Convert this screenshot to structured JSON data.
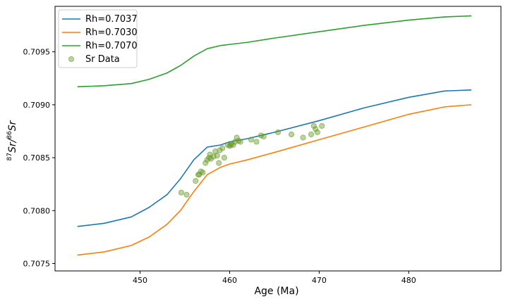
{
  "chart_data": {
    "type": "line",
    "title": "",
    "xlabel": "Age (Ma)",
    "ylabel_parts": {
      "sup1": "87",
      "base1": "Sr/",
      "sup2": "86",
      "base2": "Sr"
    },
    "xlim": [
      440.5,
      490.3
    ],
    "ylim": [
      0.70743,
      0.70993
    ],
    "x_ticks": [
      450,
      460,
      470,
      480
    ],
    "y_ticks": [
      0.7075,
      0.708,
      0.7085,
      0.709,
      0.7095
    ],
    "x_tick_labels": [
      "450",
      "460",
      "470",
      "480"
    ],
    "y_tick_labels": [
      "0.7075",
      "0.7080",
      "0.7085",
      "0.7090",
      "0.7095"
    ],
    "legend_position": "upper-left",
    "series": [
      {
        "name": "Rh=0.7037",
        "color": "#1f77b4",
        "x": [
          443,
          446,
          449,
          451,
          453,
          454.5,
          456,
          457.5,
          459,
          460,
          462,
          465,
          470,
          475,
          480,
          484,
          487
        ],
        "y": [
          0.70785,
          0.70788,
          0.70794,
          0.70803,
          0.70815,
          0.7083,
          0.70848,
          0.7086,
          0.70862,
          0.70865,
          0.70868,
          0.70874,
          0.70885,
          0.70897,
          0.70907,
          0.70913,
          0.70914
        ]
      },
      {
        "name": "Rh=0.7030",
        "color": "#ff7f0e",
        "x": [
          443,
          446,
          449,
          451,
          453,
          454.5,
          456,
          457.5,
          459,
          460,
          462,
          465,
          470,
          475,
          480,
          484,
          487
        ],
        "y": [
          0.70758,
          0.70761,
          0.70767,
          0.70775,
          0.70787,
          0.708,
          0.70818,
          0.70834,
          0.70841,
          0.70844,
          0.70848,
          0.70855,
          0.70867,
          0.70879,
          0.70891,
          0.70898,
          0.709
        ]
      },
      {
        "name": "Rh=0.7070",
        "color": "#2ca02c",
        "x": [
          443,
          446,
          449,
          451,
          453,
          454.5,
          456,
          457.5,
          459,
          460,
          462,
          465,
          470,
          475,
          480,
          484,
          487
        ],
        "y": [
          0.70917,
          0.70918,
          0.7092,
          0.70924,
          0.7093,
          0.70937,
          0.70946,
          0.70953,
          0.70956,
          0.70957,
          0.70959,
          0.70963,
          0.70969,
          0.70975,
          0.7098,
          0.70983,
          0.70984
        ]
      }
    ],
    "scatter": {
      "name": "Sr Data",
      "color": "#6b9b2a",
      "x": [
        454.6,
        455.2,
        456.2,
        456.5,
        456.8,
        457.0,
        456.6,
        457.3,
        457.5,
        457.7,
        457.8,
        457.9,
        458.2,
        458.4,
        458.6,
        458.8,
        458.9,
        459.2,
        459.4,
        459.8,
        460.0,
        460.1,
        460.2,
        460.4,
        460.6,
        460.8,
        461.0,
        461.2,
        462.4,
        463.0,
        463.5,
        463.8,
        465.4,
        466.9,
        468.2,
        469.1,
        469.4,
        469.6,
        469.8,
        470.3
      ],
      "y": [
        0.70817,
        0.70815,
        0.70828,
        0.70834,
        0.70837,
        0.70836,
        0.70834,
        0.70845,
        0.70848,
        0.7085,
        0.70853,
        0.70849,
        0.70851,
        0.70856,
        0.70852,
        0.70845,
        0.70857,
        0.70859,
        0.7085,
        0.70862,
        0.70861,
        0.70862,
        0.70863,
        0.70862,
        0.70865,
        0.70869,
        0.70866,
        0.70865,
        0.70867,
        0.70865,
        0.70871,
        0.7087,
        0.70874,
        0.70872,
        0.70869,
        0.70872,
        0.7088,
        0.70877,
        0.70874,
        0.7088
      ]
    }
  }
}
